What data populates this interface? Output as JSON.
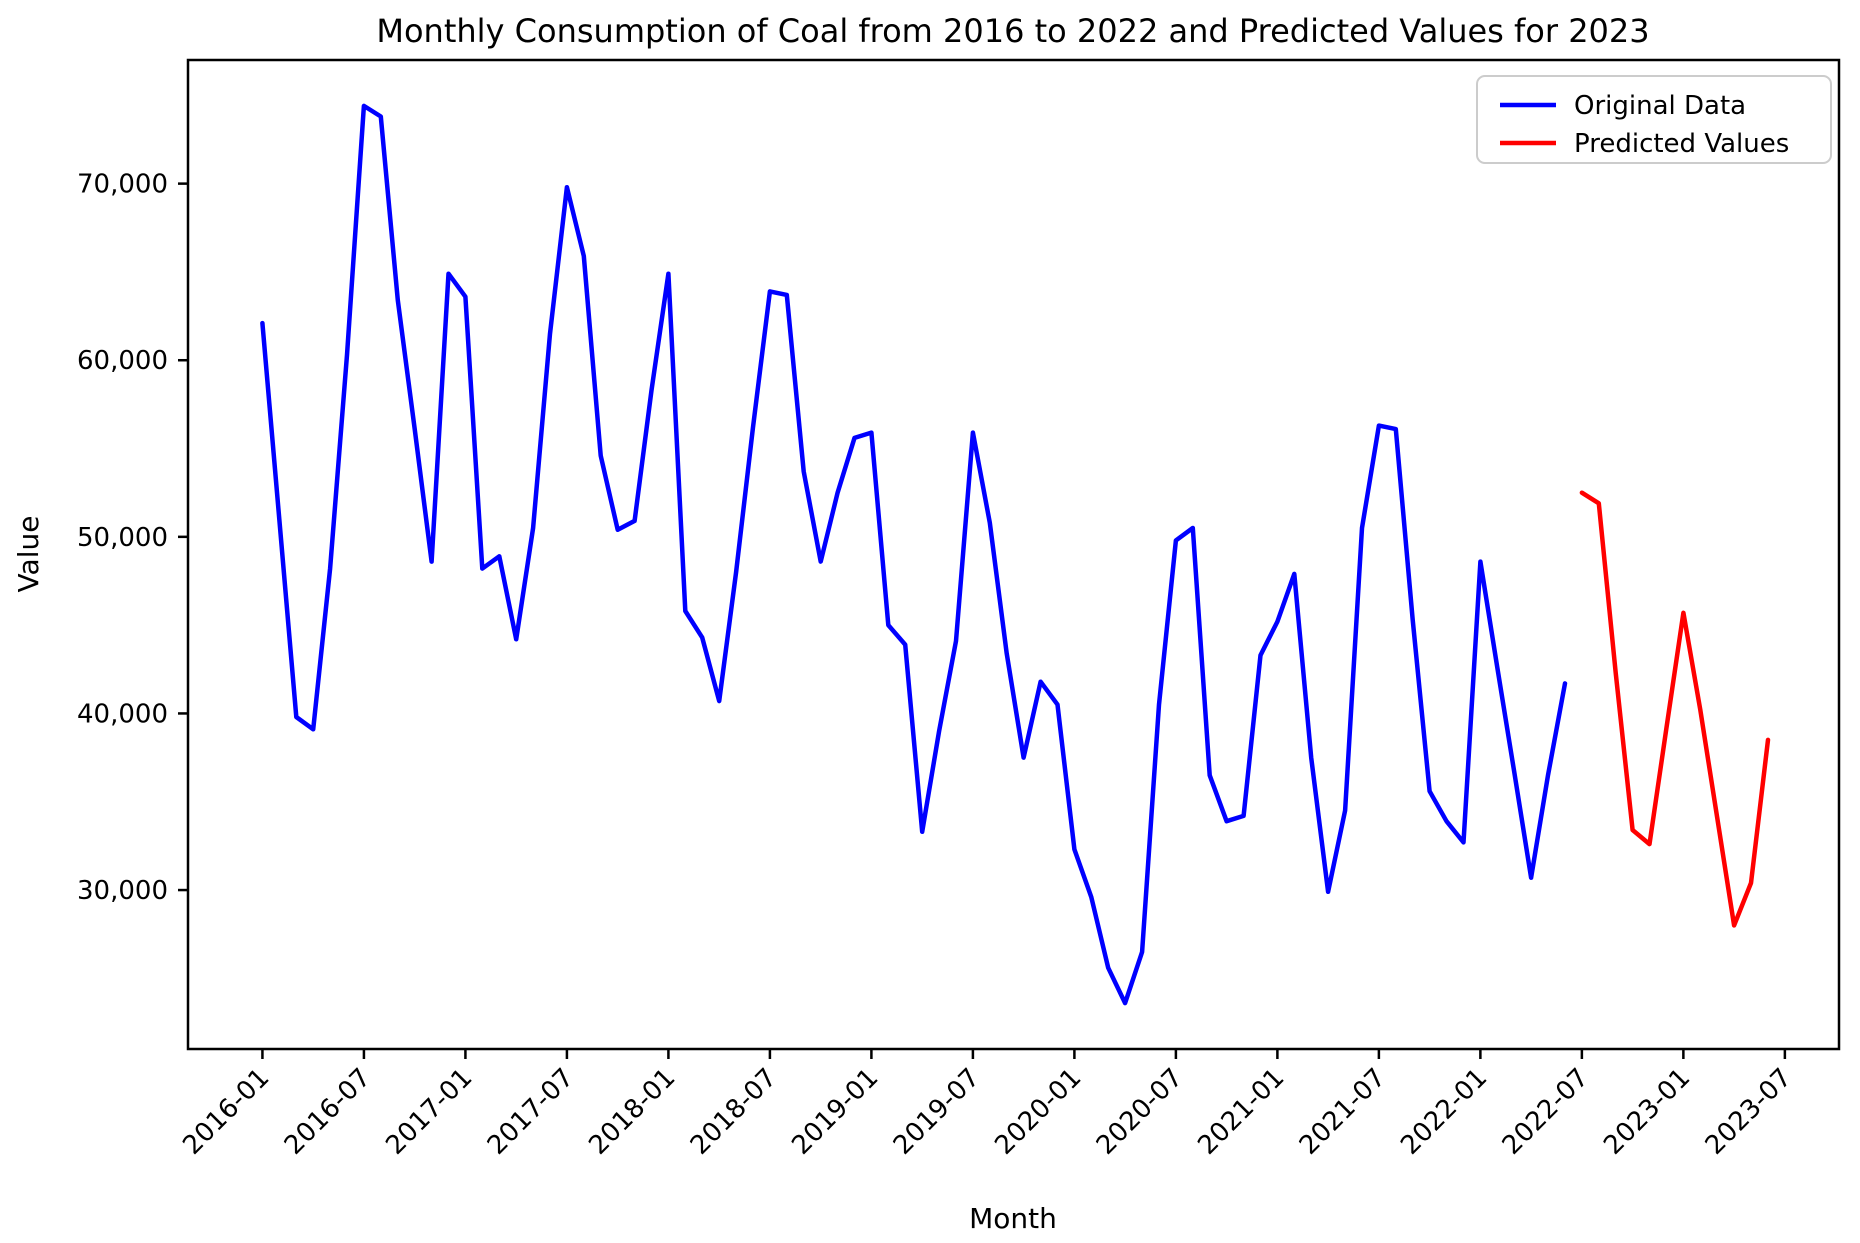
{
  "title": "Monthly Consumption of Coal from 2016 to 2022 and Predicted Values for 2023",
  "chart_data": {
    "type": "line",
    "title": "Monthly Consumption of Coal from 2016 to 2022 and Predicted Values for 2023",
    "xlabel": "Month",
    "ylabel": "Value",
    "grid": false,
    "legend_position": "upper right",
    "ylim": [
      21000,
      77000
    ],
    "xlim_month_index": [
      -4.4,
      93.2
    ],
    "y_ticks": [
      {
        "value": 30000,
        "label": "30,000"
      },
      {
        "value": 40000,
        "label": "40,000"
      },
      {
        "value": 50000,
        "label": "50,000"
      },
      {
        "value": 60000,
        "label": "60,000"
      },
      {
        "value": 70000,
        "label": "70,000"
      }
    ],
    "x_ticks": [
      {
        "month_index": 0,
        "label": "2016-01"
      },
      {
        "month_index": 6,
        "label": "2016-07"
      },
      {
        "month_index": 12,
        "label": "2017-01"
      },
      {
        "month_index": 18,
        "label": "2017-07"
      },
      {
        "month_index": 24,
        "label": "2018-01"
      },
      {
        "month_index": 30,
        "label": "2018-07"
      },
      {
        "month_index": 36,
        "label": "2019-01"
      },
      {
        "month_index": 42,
        "label": "2019-07"
      },
      {
        "month_index": 48,
        "label": "2020-01"
      },
      {
        "month_index": 54,
        "label": "2020-07"
      },
      {
        "month_index": 60,
        "label": "2021-01"
      },
      {
        "month_index": 66,
        "label": "2021-07"
      },
      {
        "month_index": 72,
        "label": "2022-01"
      },
      {
        "month_index": 78,
        "label": "2022-07"
      },
      {
        "month_index": 84,
        "label": "2023-01"
      },
      {
        "month_index": 90,
        "label": "2023-07"
      }
    ],
    "series": [
      {
        "name": "Original Data",
        "color": "#0000ff",
        "start_month": "2016-01",
        "start_month_index": 0,
        "values": [
          62100,
          51000,
          39800,
          39100,
          48200,
          60300,
          74400,
          73800,
          63400,
          56100,
          48600,
          64900,
          63600,
          48200,
          48900,
          44200,
          50500,
          61500,
          69800,
          65900,
          54600,
          50400,
          50900,
          58300,
          64900,
          45800,
          44300,
          40700,
          48000,
          56200,
          63900,
          63700,
          53700,
          48600,
          52500,
          55600,
          55900,
          45000,
          43900,
          33300,
          39000,
          44100,
          55900,
          50800,
          43400,
          37500,
          41800,
          40500,
          32300,
          29600,
          25600,
          23600,
          26500,
          40500,
          49800,
          50500,
          36500,
          33900,
          34200,
          43300,
          45200,
          47900,
          37500,
          29900,
          34500,
          50500,
          56300,
          56100,
          45300,
          35600,
          33900,
          32700,
          48600,
          42600,
          36700,
          30700,
          36500,
          41700
        ]
      },
      {
        "name": "Predicted Values",
        "color": "#ff0000",
        "start_month": "2022-07",
        "start_month_index": 78,
        "values": [
          52500,
          51900,
          42300,
          33400,
          32600,
          39200,
          45700,
          40200,
          34100,
          28000,
          30400,
          38500
        ]
      }
    ]
  }
}
